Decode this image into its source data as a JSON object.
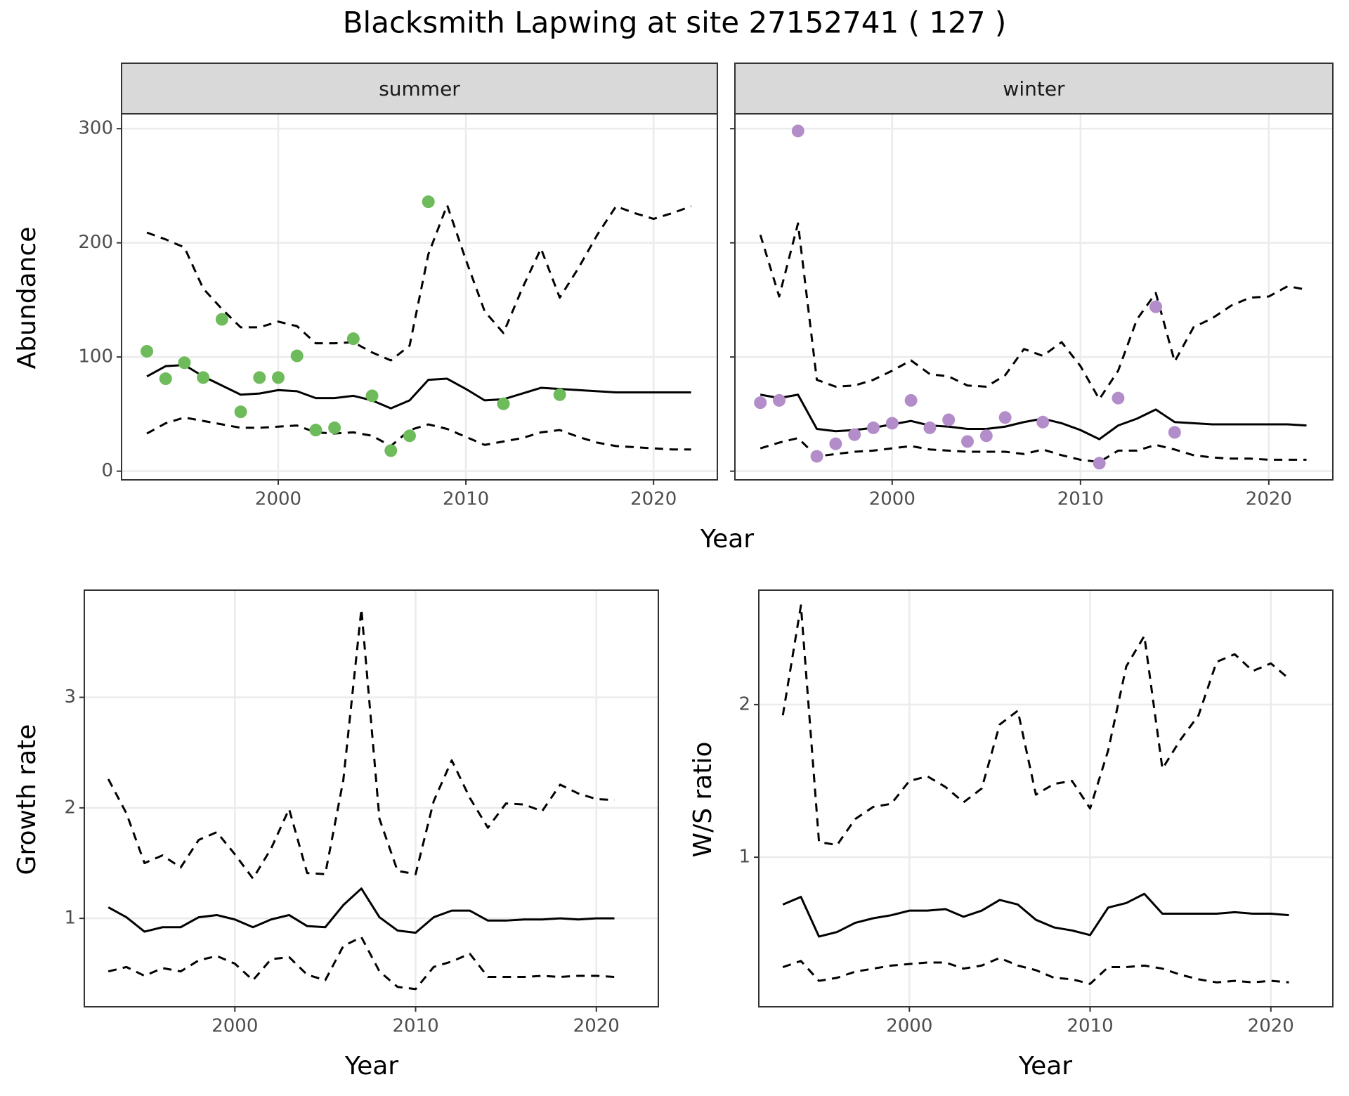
{
  "title": "Blacksmith Lapwing at site 27152741 ( 127 )",
  "chart_data": [
    {
      "type": "line",
      "panel_title": "summer",
      "xlabel": "Year",
      "ylabel": "Abundance",
      "x": [
        1993,
        1994,
        1995,
        1996,
        1997,
        1998,
        1999,
        2000,
        2001,
        2002,
        2003,
        2004,
        2005,
        2006,
        2007,
        2008,
        2009,
        2010,
        2011,
        2012,
        2013,
        2014,
        2015,
        2016,
        2017,
        2018,
        2019,
        2020,
        2021,
        2022
      ],
      "series": [
        {
          "color": "#000000",
          "style": "solid",
          "values": [
            83,
            92,
            93,
            83,
            75,
            67,
            68,
            71,
            70,
            64,
            64,
            66,
            62,
            55,
            62,
            80,
            81,
            72,
            62,
            63,
            68,
            73,
            72,
            71,
            70,
            69,
            69,
            69,
            69,
            69
          ]
        },
        {
          "color": "#000000",
          "style": "dashed",
          "values": [
            209,
            203,
            196,
            160,
            142,
            126,
            126,
            131,
            127,
            112,
            112,
            113,
            104,
            97,
            110,
            190,
            233,
            185,
            140,
            121,
            160,
            195,
            152,
            178,
            207,
            232,
            226,
            221,
            226,
            232
          ]
        },
        {
          "color": "#000000",
          "style": "dashed",
          "values": [
            33,
            42,
            47,
            44,
            41,
            38,
            38,
            39,
            40,
            34,
            33,
            34,
            31,
            22,
            36,
            41,
            37,
            30,
            23,
            26,
            29,
            34,
            36,
            30,
            25,
            22,
            21,
            20,
            19,
            19
          ]
        }
      ],
      "points": {
        "color": "#6dbb5a",
        "x": [
          1993,
          1994,
          1995,
          1996,
          1997,
          1998,
          1999,
          2000,
          2001,
          2002,
          2003,
          2004,
          2005,
          2006,
          2007,
          2008,
          2012,
          2015
        ],
        "values": [
          105,
          81,
          95,
          82,
          133,
          52,
          82,
          82,
          101,
          36,
          38,
          116,
          66,
          18,
          31,
          236,
          59,
          67
        ]
      },
      "xlim": [
        1991.65,
        2023.4
      ],
      "ylim": [
        -7.6,
        313
      ],
      "xticks": [
        2000,
        2010,
        2020
      ],
      "yticks": [
        0,
        100,
        200,
        300
      ],
      "show_ytick_labels": true,
      "grid": true
    },
    {
      "type": "line",
      "panel_title": "winter",
      "x": [
        1993,
        1994,
        1995,
        1996,
        1997,
        1998,
        1999,
        2000,
        2001,
        2002,
        2003,
        2004,
        2005,
        2006,
        2007,
        2008,
        2009,
        2010,
        2011,
        2012,
        2013,
        2014,
        2015,
        2016,
        2017,
        2018,
        2019,
        2020,
        2021,
        2022
      ],
      "series": [
        {
          "color": "#000000",
          "style": "solid",
          "values": [
            67,
            64,
            67,
            37,
            35,
            36,
            38,
            41,
            44,
            40,
            39,
            37,
            37,
            39,
            43,
            46,
            42,
            36,
            28,
            40,
            46,
            54,
            43,
            42,
            41,
            41,
            41,
            41,
            41,
            40
          ]
        },
        {
          "color": "#000000",
          "style": "dashed",
          "values": [
            207,
            153,
            217,
            80,
            74,
            75,
            80,
            88,
            97,
            85,
            83,
            75,
            74,
            84,
            107,
            101,
            113,
            92,
            63,
            88,
            133,
            156,
            96,
            126,
            134,
            145,
            152,
            153,
            162,
            159
          ]
        },
        {
          "color": "#000000",
          "style": "dashed",
          "values": [
            20,
            25,
            29,
            13,
            15,
            17,
            18,
            20,
            22,
            19,
            18,
            17,
            17,
            17,
            15,
            19,
            14,
            10,
            8,
            18,
            18,
            23,
            19,
            14,
            12,
            11,
            11,
            10,
            10,
            10
          ]
        }
      ],
      "points": {
        "color": "#b38dc9",
        "x": [
          1993,
          1994,
          1995,
          1996,
          1997,
          1998,
          1999,
          2000,
          2001,
          2002,
          2003,
          2004,
          2005,
          2006,
          2008,
          2011,
          2012,
          2014,
          2015
        ],
        "values": [
          60,
          62,
          298,
          13,
          24,
          32,
          38,
          42,
          62,
          38,
          45,
          26,
          31,
          47,
          43,
          7,
          64,
          144,
          34
        ]
      },
      "xlim": [
        1991.65,
        2023.4
      ],
      "ylim": [
        -7.6,
        313
      ],
      "xticks": [
        2000,
        2010,
        2020
      ],
      "yticks": [
        0,
        100,
        200,
        300
      ],
      "show_ytick_labels": false,
      "grid": true
    },
    {
      "type": "line",
      "xlabel": "Year",
      "ylabel": "Growth rate",
      "x": [
        1993,
        1994,
        1995,
        1996,
        1997,
        1998,
        1999,
        2000,
        2001,
        2002,
        2003,
        2004,
        2005,
        2006,
        2007,
        2008,
        2009,
        2010,
        2011,
        2012,
        2013,
        2014,
        2015,
        2016,
        2017,
        2018,
        2019,
        2020,
        2021
      ],
      "series": [
        {
          "color": "#000000",
          "style": "solid",
          "values": [
            1.1,
            1.01,
            0.88,
            0.92,
            0.92,
            1.01,
            1.03,
            0.99,
            0.92,
            0.99,
            1.03,
            0.93,
            0.92,
            1.12,
            1.27,
            1.01,
            0.89,
            0.87,
            1.01,
            1.07,
            1.07,
            0.98,
            0.98,
            0.99,
            0.99,
            1.0,
            0.99,
            1.0,
            1.0
          ]
        },
        {
          "color": "#000000",
          "style": "dashed",
          "values": [
            2.26,
            1.95,
            1.5,
            1.57,
            1.46,
            1.71,
            1.78,
            1.58,
            1.36,
            1.63,
            1.99,
            1.41,
            1.4,
            2.25,
            3.8,
            1.9,
            1.43,
            1.4,
            2.06,
            2.43,
            2.09,
            1.82,
            2.04,
            2.03,
            1.97,
            2.21,
            2.13,
            2.08,
            2.07
          ]
        },
        {
          "color": "#000000",
          "style": "dashed",
          "values": [
            0.52,
            0.56,
            0.48,
            0.55,
            0.52,
            0.62,
            0.66,
            0.59,
            0.44,
            0.63,
            0.65,
            0.49,
            0.44,
            0.75,
            0.83,
            0.52,
            0.38,
            0.36,
            0.56,
            0.61,
            0.68,
            0.47,
            0.47,
            0.47,
            0.48,
            0.47,
            0.48,
            0.48,
            0.47
          ]
        }
      ],
      "xlim": [
        1991.67,
        2023.43
      ],
      "ylim": [
        0.2,
        3.97
      ],
      "xticks": [
        2000,
        2010,
        2020
      ],
      "yticks": [
        1,
        2,
        3
      ],
      "show_ytick_labels": true,
      "grid": true
    },
    {
      "type": "line",
      "xlabel": "Year",
      "ylabel": "W/S ratio",
      "x": [
        1993,
        1994,
        1995,
        1996,
        1997,
        1998,
        1999,
        2000,
        2001,
        2002,
        2003,
        2004,
        2005,
        2006,
        2007,
        2008,
        2009,
        2010,
        2011,
        2012,
        2013,
        2014,
        2015,
        2016,
        2017,
        2018,
        2019,
        2020,
        2021
      ],
      "series": [
        {
          "color": "#000000",
          "style": "solid",
          "values": [
            0.69,
            0.74,
            0.48,
            0.51,
            0.57,
            0.6,
            0.62,
            0.65,
            0.65,
            0.66,
            0.61,
            0.65,
            0.72,
            0.69,
            0.59,
            0.54,
            0.52,
            0.49,
            0.67,
            0.7,
            0.76,
            0.63,
            0.63,
            0.63,
            0.63,
            0.64,
            0.63,
            0.63,
            0.62
          ]
        },
        {
          "color": "#000000",
          "style": "dashed",
          "values": [
            1.93,
            2.65,
            1.1,
            1.08,
            1.25,
            1.33,
            1.35,
            1.5,
            1.53,
            1.46,
            1.36,
            1.45,
            1.87,
            1.96,
            1.41,
            1.48,
            1.5,
            1.32,
            1.7,
            2.25,
            2.45,
            1.58,
            1.77,
            1.93,
            2.28,
            2.33,
            2.22,
            2.27,
            2.17
          ]
        },
        {
          "color": "#000000",
          "style": "dashed",
          "values": [
            0.28,
            0.32,
            0.19,
            0.21,
            0.25,
            0.27,
            0.29,
            0.3,
            0.31,
            0.31,
            0.27,
            0.29,
            0.34,
            0.29,
            0.26,
            0.21,
            0.2,
            0.17,
            0.28,
            0.28,
            0.29,
            0.27,
            0.23,
            0.2,
            0.18,
            0.19,
            0.18,
            0.19,
            0.18
          ]
        }
      ],
      "xlim": [
        1991.67,
        2023.43
      ],
      "ylim": [
        0.02,
        2.75
      ],
      "xticks": [
        2000,
        2010,
        2020
      ],
      "yticks": [
        1,
        2
      ],
      "show_ytick_labels": true,
      "grid": true
    }
  ]
}
